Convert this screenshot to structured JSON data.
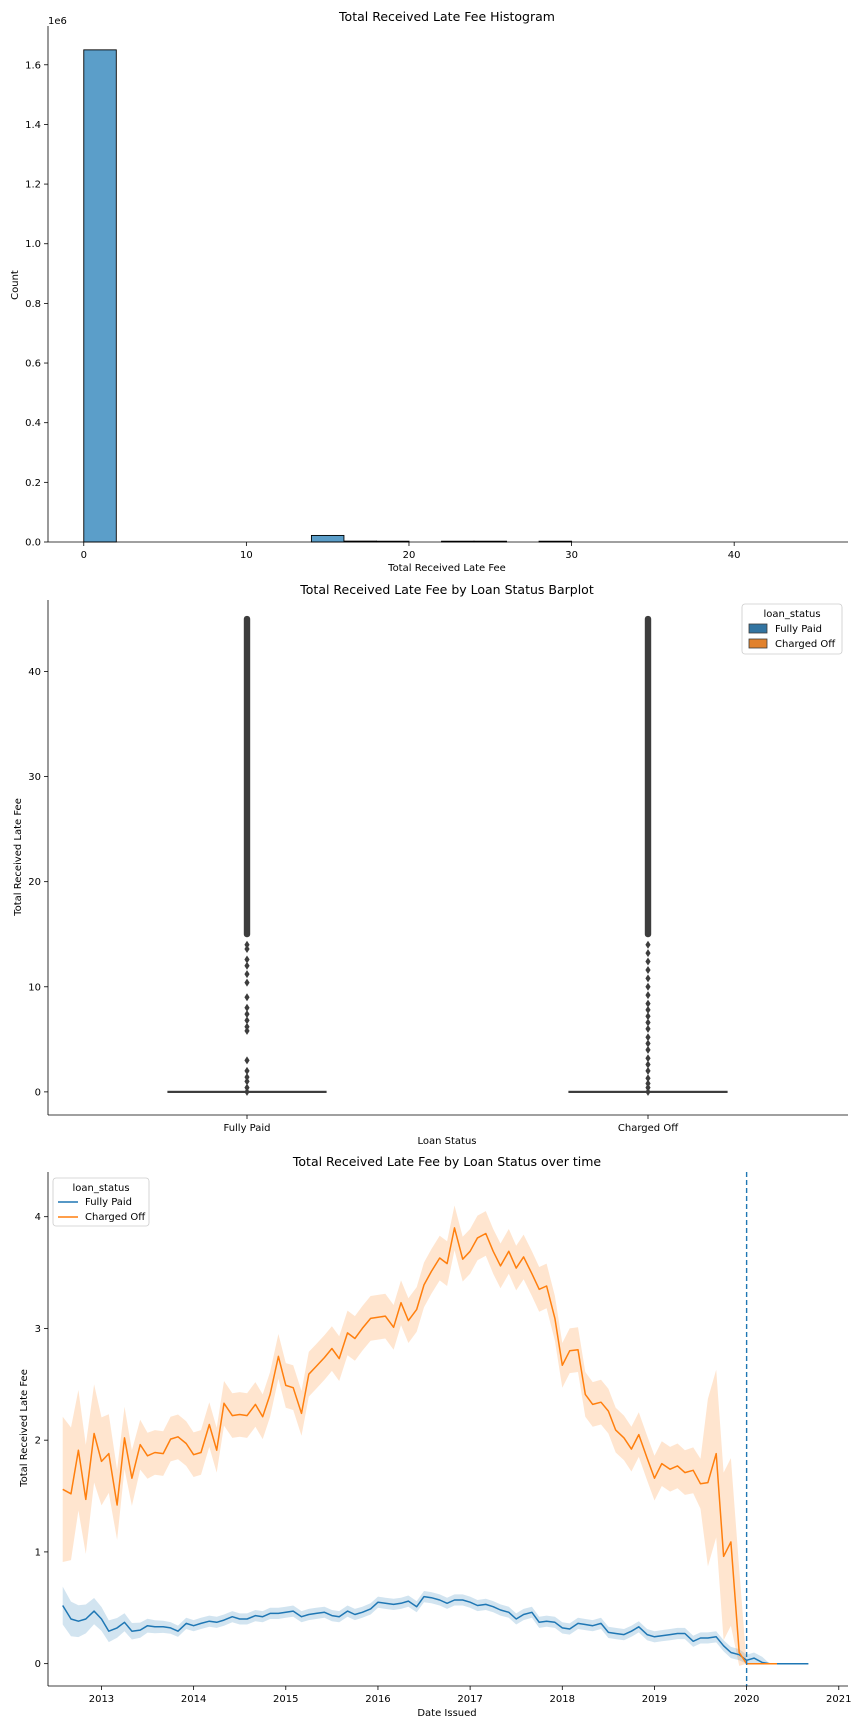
{
  "chart_data": [
    {
      "type": "bar",
      "title": "Total Received Late Fee Histogram",
      "xlabel": "Total Received Late Fee",
      "ylabel": "Count",
      "y_offset_label": "1e6",
      "xlim": [
        -2.2,
        47
      ],
      "ylim": [
        0,
        1.73
      ],
      "x_ticks": [
        0,
        10,
        20,
        30,
        40
      ],
      "y_ticks": [
        0.0,
        0.2,
        0.4,
        0.6,
        0.8,
        1.0,
        1.2,
        1.4,
        1.6
      ],
      "x_tick_labels": [
        "0",
        "10",
        "20",
        "30",
        "40"
      ],
      "y_tick_labels": [
        "0.0",
        "0.2",
        "0.4",
        "0.6",
        "0.8",
        "1.0",
        "1.2",
        "1.4",
        "1.6"
      ],
      "bins": [
        {
          "x0": 0,
          "x1": 2,
          "value": 1.65
        },
        {
          "x0": 14,
          "x1": 16,
          "value": 0.022
        },
        {
          "x0": 16,
          "x1": 18,
          "value": 0.003
        },
        {
          "x0": 18,
          "x1": 20,
          "value": 0.002
        },
        {
          "x0": 22,
          "x1": 24,
          "value": 0.001
        },
        {
          "x0": 24,
          "x1": 26,
          "value": 0.001
        },
        {
          "x0": 28,
          "x1": 30,
          "value": 0.002
        }
      ],
      "bar_color": "#5b9ec9"
    },
    {
      "type": "box",
      "title": "Total Received Late Fee by Loan Status Barplot",
      "xlabel": "Loan Status",
      "ylabel": "Total Received Late Fee",
      "categories": [
        "Fully Paid",
        "Charged Off"
      ],
      "ylim": [
        -2.2,
        46.8
      ],
      "y_ticks": [
        0,
        10,
        20,
        30,
        40
      ],
      "y_tick_labels": [
        "0",
        "10",
        "20",
        "30",
        "40"
      ],
      "box_q1": 0,
      "box_q3": 0,
      "median": 0,
      "outlier_dense_range": [
        15,
        45
      ],
      "outliers": {
        "Fully Paid": [
          0,
          0.4,
          1,
          1.4,
          2,
          3,
          5.8,
          6.2,
          6.8,
          7.4,
          8,
          9,
          10.4,
          11.2,
          12,
          12.6,
          13.6,
          14
        ],
        "Charged Off": [
          0,
          0.4,
          0.8,
          1.3,
          2,
          2.6,
          3.2,
          4,
          4.6,
          5.2,
          6,
          6.6,
          7.2,
          7.8,
          8.4,
          9.2,
          10,
          10.8,
          11.6,
          12.4,
          13.2,
          14
        ]
      },
      "legend": {
        "title": "loan_status",
        "position": "top-right",
        "entries": [
          "Fully Paid",
          "Charged Off"
        ]
      },
      "colors": {
        "Fully Paid": "#3274a1",
        "Charged Off": "#e1812c"
      }
    },
    {
      "type": "line",
      "title": "Total Received Late Fee by Loan Status over time",
      "xlabel": "Date Issued",
      "ylabel": "Total Received Late Fee",
      "xlim": [
        2012.42,
        2021.1
      ],
      "ylim": [
        -0.2,
        4.4
      ],
      "x_ticks": [
        2013,
        2014,
        2015,
        2016,
        2017,
        2018,
        2019,
        2020,
        2021
      ],
      "x_tick_labels": [
        "2013",
        "2014",
        "2015",
        "2016",
        "2017",
        "2018",
        "2019",
        "2020",
        "2021"
      ],
      "y_ticks": [
        0,
        1,
        2,
        3,
        4
      ],
      "y_tick_labels": [
        "0",
        "1",
        "2",
        "3",
        "4"
      ],
      "vline_x": 2020.0,
      "legend": {
        "title": "loan_status",
        "position": "top-left",
        "entries": [
          "Fully Paid",
          "Charged Off"
        ]
      },
      "series": [
        {
          "name": "Fully Paid",
          "color": "#1f77b4",
          "points": [
            [
              2012.58,
              0.52
            ],
            [
              2012.67,
              0.4
            ],
            [
              2012.75,
              0.38
            ],
            [
              2012.83,
              0.4
            ],
            [
              2012.92,
              0.47
            ],
            [
              2013.0,
              0.4
            ],
            [
              2013.08,
              0.29
            ],
            [
              2013.17,
              0.32
            ],
            [
              2013.25,
              0.37
            ],
            [
              2013.33,
              0.29
            ],
            [
              2013.42,
              0.3
            ],
            [
              2013.5,
              0.34
            ],
            [
              2013.58,
              0.33
            ],
            [
              2013.67,
              0.33
            ],
            [
              2013.75,
              0.32
            ],
            [
              2013.83,
              0.29
            ],
            [
              2013.92,
              0.36
            ],
            [
              2014.0,
              0.34
            ],
            [
              2014.08,
              0.36
            ],
            [
              2014.17,
              0.38
            ],
            [
              2014.25,
              0.37
            ],
            [
              2014.33,
              0.39
            ],
            [
              2014.42,
              0.42
            ],
            [
              2014.5,
              0.4
            ],
            [
              2014.58,
              0.4
            ],
            [
              2014.67,
              0.43
            ],
            [
              2014.75,
              0.42
            ],
            [
              2014.83,
              0.45
            ],
            [
              2014.92,
              0.45
            ],
            [
              2015.0,
              0.46
            ],
            [
              2015.08,
              0.47
            ],
            [
              2015.17,
              0.42
            ],
            [
              2015.25,
              0.44
            ],
            [
              2015.33,
              0.45
            ],
            [
              2015.42,
              0.46
            ],
            [
              2015.5,
              0.43
            ],
            [
              2015.58,
              0.42
            ],
            [
              2015.67,
              0.47
            ],
            [
              2015.75,
              0.44
            ],
            [
              2015.83,
              0.46
            ],
            [
              2015.92,
              0.49
            ],
            [
              2016.0,
              0.55
            ],
            [
              2016.08,
              0.54
            ],
            [
              2016.17,
              0.53
            ],
            [
              2016.25,
              0.54
            ],
            [
              2016.33,
              0.56
            ],
            [
              2016.42,
              0.51
            ],
            [
              2016.5,
              0.6
            ],
            [
              2016.58,
              0.59
            ],
            [
              2016.67,
              0.57
            ],
            [
              2016.75,
              0.54
            ],
            [
              2016.83,
              0.57
            ],
            [
              2016.92,
              0.57
            ],
            [
              2017.0,
              0.55
            ],
            [
              2017.08,
              0.52
            ],
            [
              2017.17,
              0.53
            ],
            [
              2017.25,
              0.51
            ],
            [
              2017.33,
              0.48
            ],
            [
              2017.42,
              0.46
            ],
            [
              2017.5,
              0.4
            ],
            [
              2017.58,
              0.44
            ],
            [
              2017.67,
              0.46
            ],
            [
              2017.75,
              0.37
            ],
            [
              2017.83,
              0.38
            ],
            [
              2017.92,
              0.37
            ],
            [
              2018.0,
              0.32
            ],
            [
              2018.08,
              0.31
            ],
            [
              2018.17,
              0.36
            ],
            [
              2018.25,
              0.35
            ],
            [
              2018.33,
              0.34
            ],
            [
              2018.42,
              0.36
            ],
            [
              2018.5,
              0.28
            ],
            [
              2018.58,
              0.27
            ],
            [
              2018.67,
              0.26
            ],
            [
              2018.75,
              0.29
            ],
            [
              2018.83,
              0.33
            ],
            [
              2018.92,
              0.26
            ],
            [
              2019.0,
              0.24
            ],
            [
              2019.08,
              0.25
            ],
            [
              2019.17,
              0.26
            ],
            [
              2019.25,
              0.27
            ],
            [
              2019.33,
              0.27
            ],
            [
              2019.42,
              0.2
            ],
            [
              2019.5,
              0.23
            ],
            [
              2019.58,
              0.23
            ],
            [
              2019.67,
              0.24
            ],
            [
              2019.75,
              0.16
            ],
            [
              2019.83,
              0.1
            ],
            [
              2019.92,
              0.08
            ],
            [
              2020.0,
              0.03
            ],
            [
              2020.08,
              0.05
            ],
            [
              2020.17,
              0.01
            ],
            [
              2020.25,
              0.0
            ],
            [
              2020.33,
              0.0
            ],
            [
              2020.42,
              0.0
            ],
            [
              2020.5,
              0.0
            ],
            [
              2020.58,
              0.0
            ],
            [
              2020.67,
              0.0
            ]
          ]
        },
        {
          "name": "Charged Off",
          "color": "#ff7f0e",
          "points": [
            [
              2012.58,
              1.56
            ],
            [
              2012.67,
              1.52
            ],
            [
              2012.75,
              1.91
            ],
            [
              2012.83,
              1.47
            ],
            [
              2012.92,
              2.06
            ],
            [
              2013.0,
              1.81
            ],
            [
              2013.08,
              1.88
            ],
            [
              2013.17,
              1.42
            ],
            [
              2013.25,
              2.02
            ],
            [
              2013.33,
              1.66
            ],
            [
              2013.42,
              1.96
            ],
            [
              2013.5,
              1.86
            ],
            [
              2013.58,
              1.89
            ],
            [
              2013.67,
              1.88
            ],
            [
              2013.75,
              2.01
            ],
            [
              2013.83,
              2.03
            ],
            [
              2013.92,
              1.97
            ],
            [
              2014.0,
              1.87
            ],
            [
              2014.08,
              1.89
            ],
            [
              2014.17,
              2.14
            ],
            [
              2014.25,
              1.91
            ],
            [
              2014.33,
              2.33
            ],
            [
              2014.42,
              2.22
            ],
            [
              2014.5,
              2.23
            ],
            [
              2014.58,
              2.22
            ],
            [
              2014.67,
              2.32
            ],
            [
              2014.75,
              2.21
            ],
            [
              2014.83,
              2.41
            ],
            [
              2014.92,
              2.75
            ],
            [
              2015.0,
              2.49
            ],
            [
              2015.08,
              2.47
            ],
            [
              2015.17,
              2.24
            ],
            [
              2015.25,
              2.59
            ],
            [
              2015.33,
              2.66
            ],
            [
              2015.42,
              2.74
            ],
            [
              2015.5,
              2.82
            ],
            [
              2015.58,
              2.73
            ],
            [
              2015.67,
              2.96
            ],
            [
              2015.75,
              2.91
            ],
            [
              2015.83,
              3.0
            ],
            [
              2015.92,
              3.09
            ],
            [
              2016.0,
              3.1
            ],
            [
              2016.08,
              3.11
            ],
            [
              2016.17,
              3.01
            ],
            [
              2016.25,
              3.23
            ],
            [
              2016.33,
              3.07
            ],
            [
              2016.42,
              3.17
            ],
            [
              2016.5,
              3.39
            ],
            [
              2016.58,
              3.51
            ],
            [
              2016.67,
              3.63
            ],
            [
              2016.75,
              3.58
            ],
            [
              2016.83,
              3.9
            ],
            [
              2016.92,
              3.62
            ],
            [
              2017.0,
              3.69
            ],
            [
              2017.08,
              3.81
            ],
            [
              2017.17,
              3.85
            ],
            [
              2017.25,
              3.69
            ],
            [
              2017.33,
              3.56
            ],
            [
              2017.42,
              3.69
            ],
            [
              2017.5,
              3.54
            ],
            [
              2017.58,
              3.64
            ],
            [
              2017.67,
              3.49
            ],
            [
              2017.75,
              3.35
            ],
            [
              2017.83,
              3.38
            ],
            [
              2017.92,
              3.09
            ],
            [
              2018.0,
              2.67
            ],
            [
              2018.08,
              2.8
            ],
            [
              2018.17,
              2.81
            ],
            [
              2018.25,
              2.41
            ],
            [
              2018.33,
              2.32
            ],
            [
              2018.42,
              2.34
            ],
            [
              2018.5,
              2.26
            ],
            [
              2018.58,
              2.09
            ],
            [
              2018.67,
              2.02
            ],
            [
              2018.75,
              1.92
            ],
            [
              2018.83,
              2.05
            ],
            [
              2018.92,
              1.84
            ],
            [
              2019.0,
              1.66
            ],
            [
              2019.08,
              1.79
            ],
            [
              2019.17,
              1.74
            ],
            [
              2019.25,
              1.77
            ],
            [
              2019.33,
              1.71
            ],
            [
              2019.42,
              1.73
            ],
            [
              2019.5,
              1.61
            ],
            [
              2019.58,
              1.62
            ],
            [
              2019.67,
              1.88
            ],
            [
              2019.75,
              0.96
            ],
            [
              2019.83,
              1.09
            ],
            [
              2019.92,
              0.1
            ],
            [
              2020.0,
              0.0
            ],
            [
              2020.08,
              0.0
            ],
            [
              2020.17,
              0.0
            ],
            [
              2020.25,
              0.0
            ],
            [
              2020.33,
              0.0
            ]
          ]
        }
      ]
    }
  ]
}
